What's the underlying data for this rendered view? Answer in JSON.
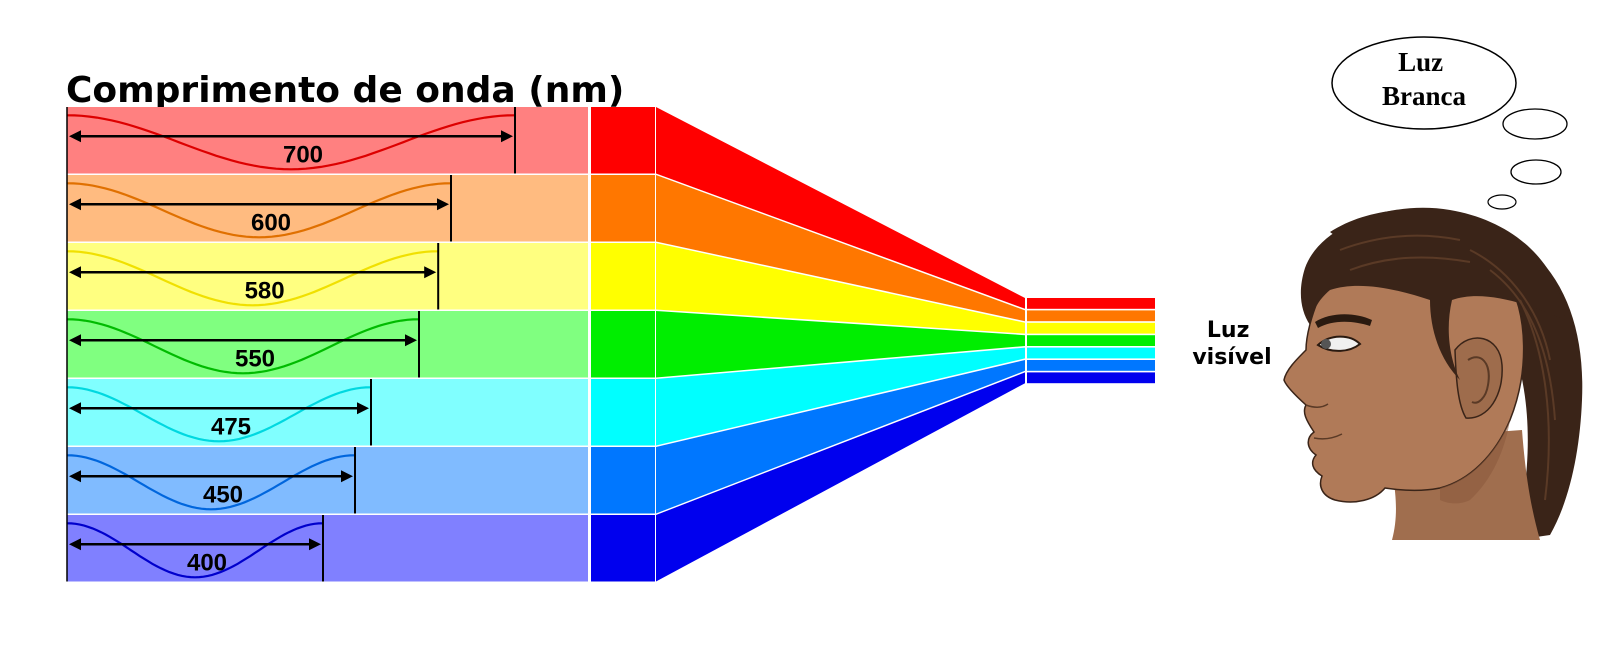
{
  "title": "Comprimento de onda (nm)",
  "bands": [
    {
      "wavelength_nm": 700,
      "label": "700",
      "pale": "#ff8080",
      "solid": "#ff0000",
      "wave": "#dd0000"
    },
    {
      "wavelength_nm": 600,
      "label": "600",
      "pale": "#ffbb80",
      "solid": "#ff7700",
      "wave": "#e07000"
    },
    {
      "wavelength_nm": 580,
      "label": "580",
      "pale": "#ffff80",
      "solid": "#ffff00",
      "wave": "#f0e000"
    },
    {
      "wavelength_nm": 550,
      "label": "550",
      "pale": "#80ff80",
      "solid": "#00ee00",
      "wave": "#00bb00"
    },
    {
      "wavelength_nm": 475,
      "label": "475",
      "pale": "#80ffff",
      "solid": "#00ffff",
      "wave": "#00d8e0"
    },
    {
      "wavelength_nm": 450,
      "label": "450",
      "pale": "#80bbff",
      "solid": "#0077ff",
      "wave": "#0066dd"
    },
    {
      "wavelength_nm": 400,
      "label": "400",
      "pale": "#8080ff",
      "solid": "#0000ee",
      "wave": "#0000cc"
    }
  ],
  "visible_light_label": [
    "Luz",
    "visível"
  ],
  "thought_bubble": {
    "lines": [
      "Luz",
      "Branca"
    ]
  },
  "person_icon": "person-profile-icon",
  "colors": {
    "skin": "#b07a58",
    "skin_shadow": "#8a5a3c",
    "hair": "#3a2418",
    "hair_highlight": "#5a3a26"
  }
}
